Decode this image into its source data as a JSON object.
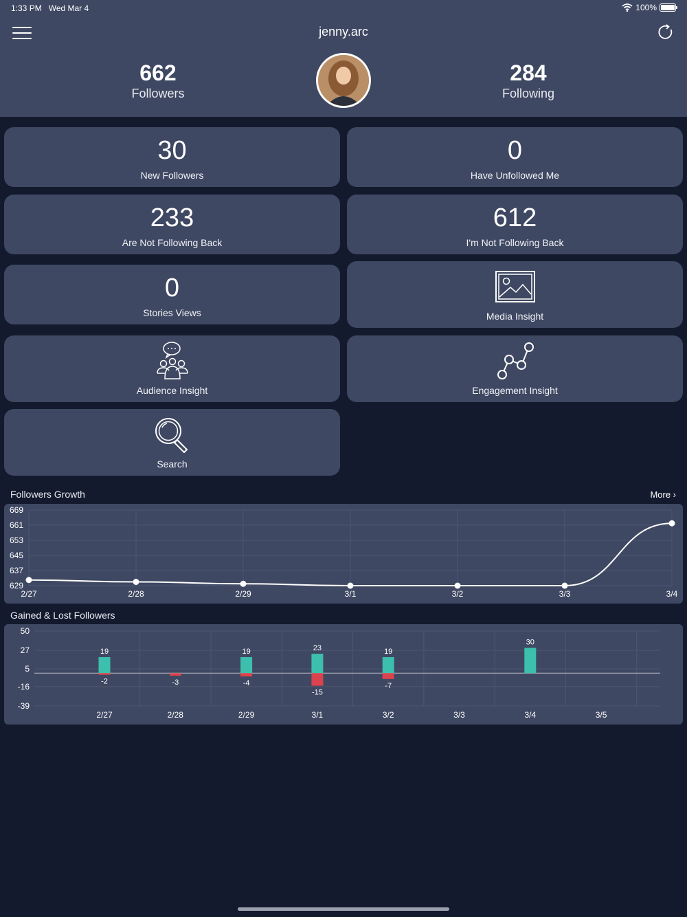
{
  "status_bar": {
    "time": "1:33 PM",
    "date": "Wed Mar 4",
    "battery": "100%"
  },
  "header": {
    "username": "jenny.arc",
    "followers": {
      "count": "662",
      "label": "Followers"
    },
    "following": {
      "count": "284",
      "label": "Following"
    }
  },
  "cards": {
    "new_followers": {
      "count": "30",
      "label": "New Followers"
    },
    "unfollowed": {
      "count": "0",
      "label": "Have Unfollowed Me"
    },
    "not_following_back": {
      "count": "233",
      "label": "Are Not Following Back"
    },
    "im_not_following_back": {
      "count": "612",
      "label": "I'm Not Following Back"
    },
    "stories_views": {
      "count": "0",
      "label": "Stories Views"
    },
    "media_insight": {
      "label": "Media Insight",
      "icon": "image-icon"
    },
    "audience_insight": {
      "label": "Audience Insight",
      "icon": "audience-icon"
    },
    "engagement_insight": {
      "label": "Engagement Insight",
      "icon": "graph-icon"
    },
    "search": {
      "label": "Search",
      "icon": "search-icon"
    }
  },
  "followers_growth": {
    "title": "Followers Growth",
    "more": "More ›"
  },
  "gained_lost": {
    "title": "Gained & Lost Followers"
  },
  "colors": {
    "header_bg": "#3f4862",
    "page_bg": "#131a2e",
    "gained": "#3dbfad",
    "lost": "#d9434d"
  },
  "chart_data": [
    {
      "type": "line",
      "title": "Followers Growth",
      "x": [
        "2/27",
        "2/28",
        "2/29",
        "3/1",
        "3/2",
        "3/3",
        "3/4"
      ],
      "values": [
        632,
        631,
        630,
        629,
        629,
        629,
        662
      ],
      "yticks": [
        669,
        661,
        653,
        645,
        637,
        629
      ],
      "ylim": [
        629,
        669
      ],
      "grid": true
    },
    {
      "type": "bar",
      "title": "Gained & Lost Followers",
      "categories": [
        "2/27",
        "2/28",
        "2/29",
        "3/1",
        "3/2",
        "3/3",
        "3/4",
        "3/5"
      ],
      "series": [
        {
          "values": [
            19,
            0,
            19,
            23,
            19,
            0,
            30,
            0
          ],
          "color": "#3dbfad"
        },
        {
          "values": [
            -2,
            -3,
            -4,
            -15,
            -7,
            0,
            0,
            0
          ],
          "color": "#d9434d"
        }
      ],
      "yticks": [
        50,
        27,
        5,
        -16,
        -39
      ],
      "ylim": [
        -39,
        50
      ],
      "grid": true
    }
  ]
}
